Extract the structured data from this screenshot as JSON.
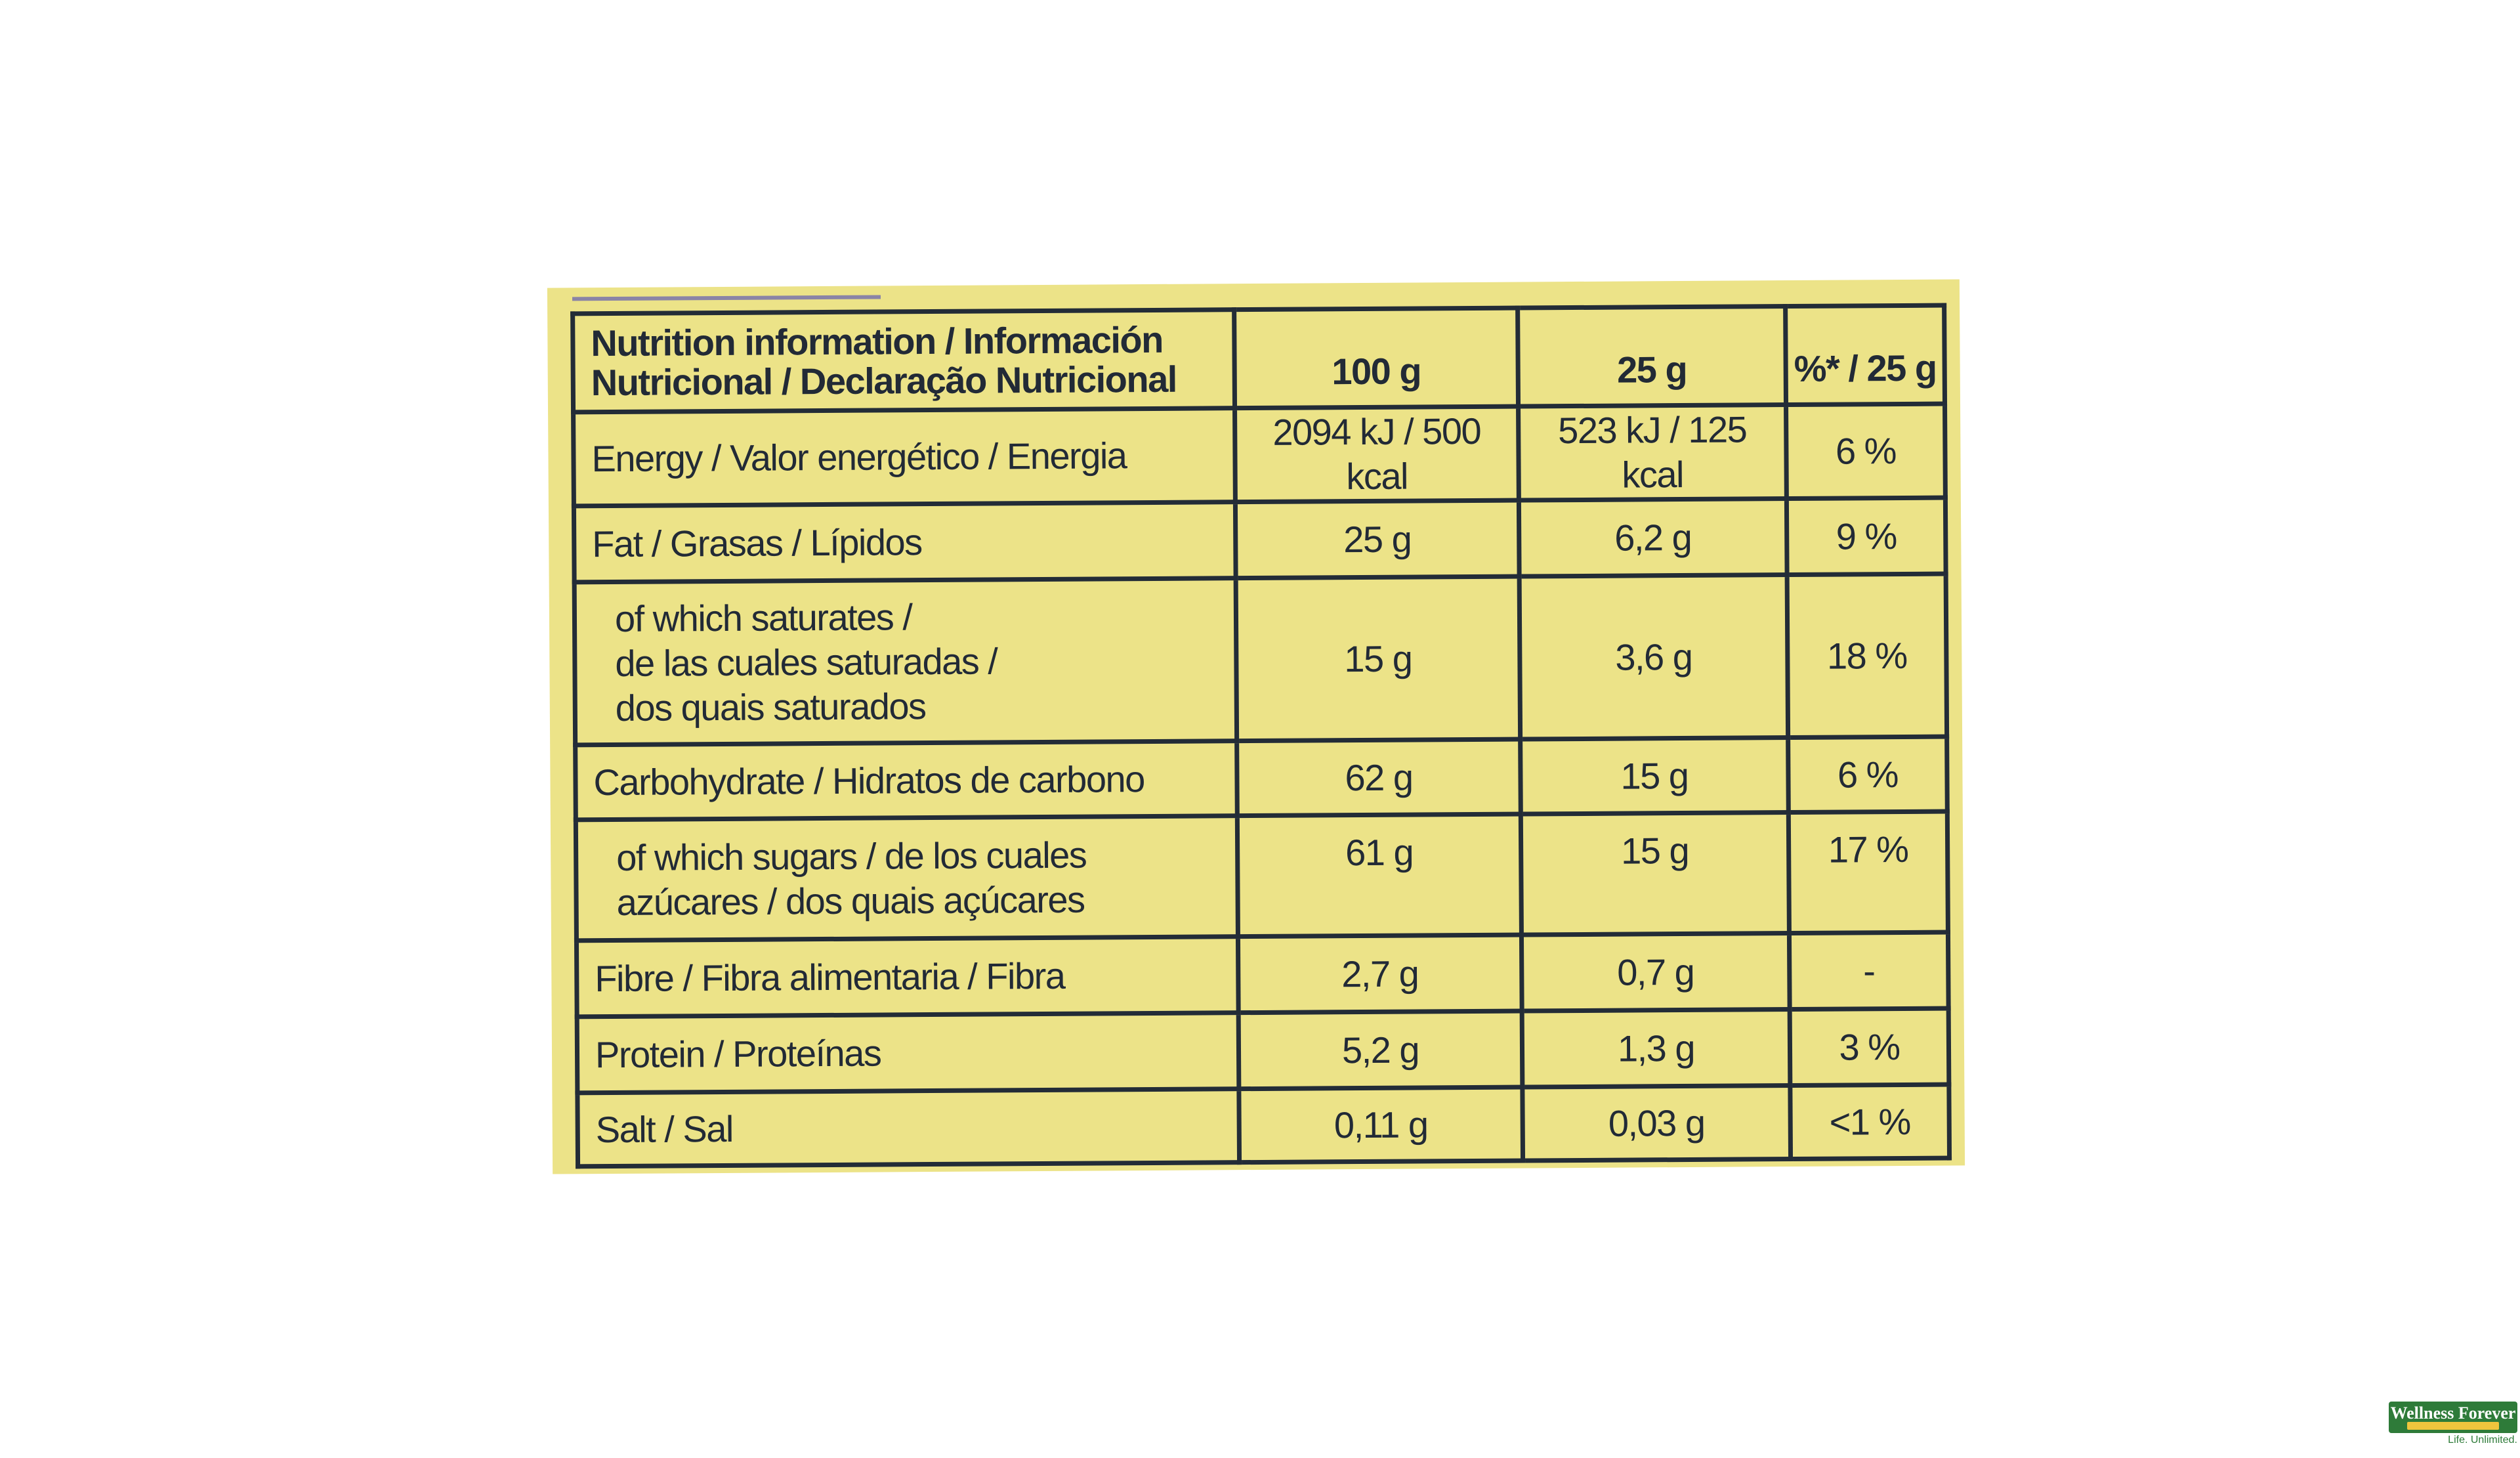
{
  "nutrition_table": {
    "header": {
      "label": "Nutrition information / Información\nNutricional / Declaração Nutricional",
      "col_100g": "100 g",
      "col_25g": "25 g",
      "col_percent": "%* / 25 g"
    },
    "rows": [
      {
        "label": "Energy / Valor energético / Energia",
        "v100": "2094 kJ / 500 kcal",
        "v25": "523 kJ / 125 kcal",
        "pct": "6 %"
      },
      {
        "label": "Fat / Grasas / Lípidos",
        "v100": "25 g",
        "v25": "6,2 g",
        "pct": "9 %"
      },
      {
        "label": "of which saturates /\nde las cuales saturadas /\ndos quais saturados",
        "v100": "15 g",
        "v25": "3,6 g",
        "pct": "18 %"
      },
      {
        "label": "Carbohydrate / Hidratos de carbono",
        "v100": "62 g",
        "v25": "15 g",
        "pct": "6 %"
      },
      {
        "label": "of which sugars / de los cuales\nazúcares / dos quais açúcares",
        "v100": "61 g",
        "v25": "15 g",
        "pct": "17 %"
      },
      {
        "label": "Fibre / Fibra alimentaria / Fibra",
        "v100": "2,7 g",
        "v25": "0,7 g",
        "pct": "-"
      },
      {
        "label": "Protein / Proteínas",
        "v100": "5,2 g",
        "v25": "1,3 g",
        "pct": "3 %"
      },
      {
        "label": "Salt / Sal",
        "v100": "0,11 g",
        "v25": "0,03 g",
        "pct": "<1 %"
      }
    ]
  },
  "watermark": {
    "brand": "Wellness Forever",
    "tagline": "Life. Unlimited.",
    "colors": {
      "green": "#2e7b39",
      "yellow": "#f0c53d"
    }
  },
  "colors": {
    "label_background": "#ece388",
    "table_ink": "#232c37",
    "page_background": "#ffffff"
  }
}
